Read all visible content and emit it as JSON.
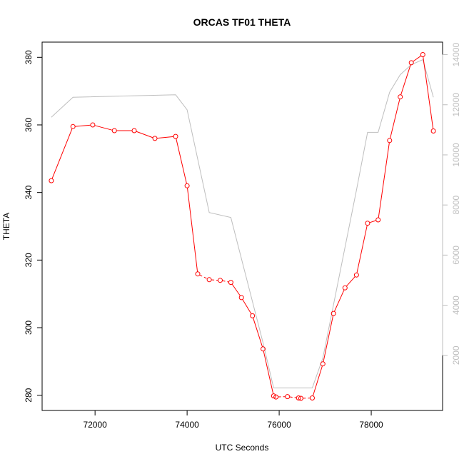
{
  "chart_data": {
    "type": "line",
    "title": "ORCAS TF01 THETA",
    "xlabel": "UTC Seconds",
    "ylabel": "THETA",
    "y2label": "",
    "xlim": [
      70850,
      79550
    ],
    "ylim": [
      275.5,
      384.5
    ],
    "y2lim": [
      -200,
      14500
    ],
    "xticks": [
      72000,
      74000,
      76000,
      78000
    ],
    "yticks": [
      280,
      300,
      320,
      340,
      360,
      380
    ],
    "y2ticks": [
      2000,
      4000,
      6000,
      8000,
      10000,
      12000,
      14000
    ],
    "grid": false,
    "colors": {
      "theta": "#ff0000",
      "secondary": "#bebebe",
      "axis": "#000000"
    },
    "series": [
      {
        "axis": "left",
        "color": "#ff0000",
        "marker": "open-circle",
        "x": [
          71050,
          71520,
          71950,
          72420,
          72850,
          73300,
          73750,
          74000,
          74230,
          74480,
          74720,
          74950,
          75180,
          75420,
          75650,
          75880,
          75930,
          76180,
          76420,
          76470,
          76720,
          76950,
          77180,
          77430,
          77680,
          77920,
          78150,
          78400,
          78630,
          78870,
          79120,
          79350
        ],
        "y": [
          343.5,
          359.5,
          360.0,
          358.3,
          358.3,
          356.0,
          356.6,
          342.0,
          315.9,
          314.2,
          314.0,
          313.4,
          308.9,
          303.5,
          293.7,
          279.8,
          279.5,
          279.6,
          279.2,
          279.1,
          279.2,
          289.3,
          304.2,
          311.8,
          315.6,
          330.9,
          331.9,
          355.4,
          368.3,
          378.4,
          380.8,
          358.2
        ],
        "segments": [
          [
            0,
            1,
            "solid"
          ],
          [
            1,
            2,
            "solid"
          ],
          [
            2,
            3,
            "solid"
          ],
          [
            3,
            4,
            "solid"
          ],
          [
            4,
            5,
            "solid"
          ],
          [
            5,
            6,
            "solid"
          ],
          [
            6,
            7,
            "solid"
          ],
          [
            7,
            8,
            "solid"
          ],
          [
            8,
            9,
            "dashed"
          ],
          [
            9,
            10,
            "dashed"
          ],
          [
            10,
            11,
            "dashed"
          ],
          [
            11,
            12,
            "solid"
          ],
          [
            12,
            13,
            "solid"
          ],
          [
            13,
            14,
            "solid"
          ],
          [
            14,
            15,
            "solid"
          ],
          [
            15,
            16,
            "solid"
          ],
          [
            16,
            17,
            "dashed"
          ],
          [
            17,
            18,
            "dashed"
          ],
          [
            18,
            19,
            "dashed"
          ],
          [
            19,
            20,
            "dashed"
          ],
          [
            20,
            21,
            "solid"
          ],
          [
            21,
            22,
            "solid"
          ],
          [
            22,
            23,
            "solid"
          ],
          [
            23,
            24,
            "solid"
          ],
          [
            24,
            25,
            "solid"
          ],
          [
            25,
            26,
            "solid"
          ],
          [
            26,
            27,
            "solid"
          ],
          [
            27,
            28,
            "solid"
          ],
          [
            28,
            29,
            "solid"
          ],
          [
            29,
            30,
            "solid"
          ],
          [
            30,
            31,
            "solid"
          ]
        ]
      },
      {
        "axis": "right",
        "color": "#bebebe",
        "marker": "none",
        "x": [
          71050,
          71520,
          73750,
          74000,
          74480,
          74950,
          75650,
          75880,
          76720,
          76950,
          77680,
          77920,
          78150,
          78400,
          78630,
          78870,
          79120,
          79350
        ],
        "y": [
          11500,
          12300,
          12400,
          11800,
          7700,
          7500,
          2500,
          700,
          700,
          1900,
          8600,
          10900,
          10900,
          12500,
          13200,
          13600,
          13800,
          12300
        ]
      }
    ]
  }
}
